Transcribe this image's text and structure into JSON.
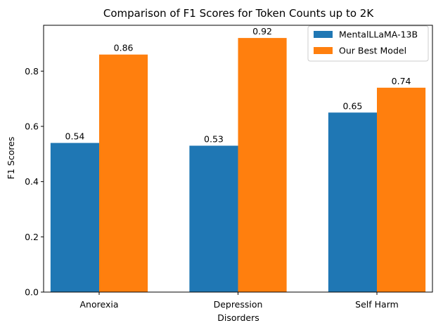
{
  "chart_data": {
    "type": "bar",
    "title": "Comparison of F1 Scores for Token Counts up to 2K",
    "xlabel": "Disorders",
    "ylabel": "F1 Scores",
    "categories": [
      "Anorexia",
      "Depression",
      "Self Harm"
    ],
    "series": [
      {
        "name": "MentalLLaMA-13B",
        "values": [
          0.54,
          0.53,
          0.65
        ],
        "color": "#1f77b4"
      },
      {
        "name": "Our Best Model",
        "values": [
          0.86,
          0.92,
          0.74
        ],
        "color": "#ff7f0e"
      }
    ],
    "ylim": [
      0,
      0.966
    ],
    "yticks": [
      0.0,
      0.2,
      0.4,
      0.6,
      0.8
    ],
    "ytick_labels": [
      "0.0",
      "0.2",
      "0.4",
      "0.6",
      "0.8"
    ],
    "data_labels": [
      [
        "0.54",
        "0.53",
        "0.65"
      ],
      [
        "0.86",
        "0.92",
        "0.74"
      ]
    ],
    "legend_position": "top-right",
    "grid": false
  }
}
